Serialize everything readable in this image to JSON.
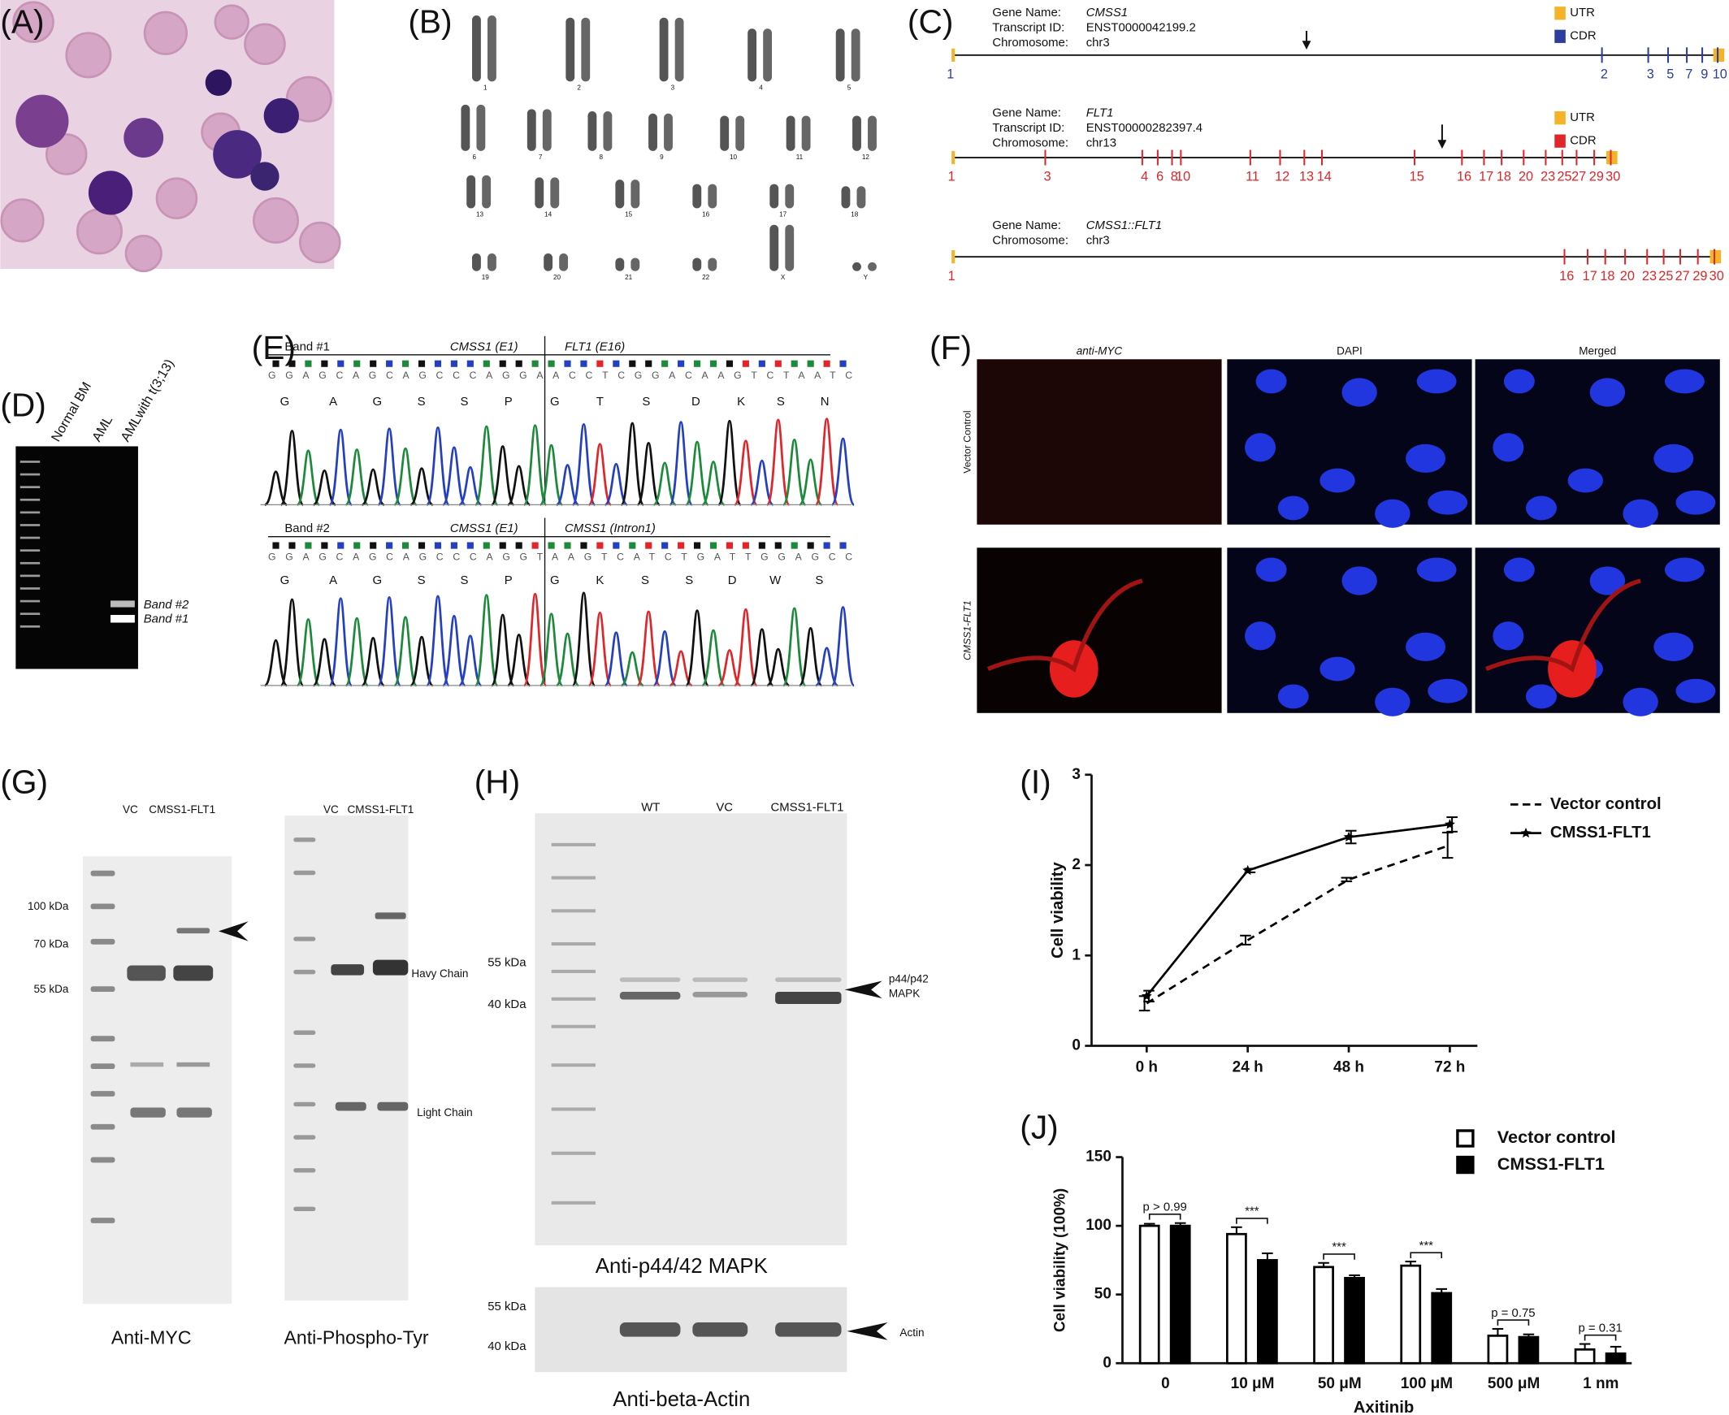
{
  "panels": {
    "labels": [
      "(A)",
      "(B)",
      "(C)",
      "(D)",
      "(E)",
      "(F)",
      "(G)",
      "(H)",
      "(I)",
      "(J)"
    ]
  },
  "panel_b": {
    "chromosomes": [
      "1",
      "2",
      "3",
      "4",
      "5",
      "6",
      "7",
      "8",
      "9",
      "10",
      "11",
      "12",
      "13",
      "14",
      "15",
      "16",
      "17",
      "18",
      "19",
      "20",
      "21",
      "22",
      "X",
      "Y"
    ]
  },
  "panel_c": {
    "tracks": [
      {
        "gene_label": "Gene Name:",
        "gene": "CMSS1",
        "transcript_label": "Transcript ID:",
        "transcript": "ENST0000042199.2",
        "chrom_label": "Chromosome:",
        "chrom": "chr3",
        "legend": [
          "UTR",
          "CDR"
        ],
        "color": "#2b3d9e",
        "utr_color": "#f5b32a",
        "exons": [
          1,
          2,
          3,
          5,
          7,
          9,
          10
        ]
      },
      {
        "gene_label": "Gene Name:",
        "gene": "FLT1",
        "transcript_label": "Transcript ID:",
        "transcript": "ENST00000282397.4",
        "chrom_label": "Chromosome:",
        "chrom": "chr13",
        "legend": [
          "UTR",
          "CDR"
        ],
        "color": "#e0262a",
        "utr_color": "#f5b32a",
        "exons": [
          1,
          3,
          4,
          6,
          8,
          10,
          11,
          12,
          13,
          14,
          15,
          16,
          17,
          18,
          20,
          23,
          25,
          27,
          29,
          30
        ]
      },
      {
        "gene_label": "Gene Name:",
        "gene": "CMSS1::FLT1",
        "chrom_label": "Chromosome:",
        "chrom": "chr3",
        "color": "#e0262a",
        "utr_color": "#f5b32a",
        "exons": [
          1,
          16,
          17,
          18,
          20,
          23,
          25,
          27,
          29,
          30
        ]
      }
    ]
  },
  "panel_d": {
    "lanes": [
      "Normal BM",
      "AML",
      "AMLwith t(3;13)"
    ],
    "bands": [
      "Band #2",
      "Band #1"
    ]
  },
  "panel_e": {
    "reads": [
      {
        "band": "Band #1",
        "left": "CMSS1 (E1)",
        "right": "FLT1 (E16)",
        "bases": "GGAGCAGCAGCCCAGGAACCTCGGACAAGTCTAATC",
        "amino_acids": [
          "G",
          "A",
          "G",
          "S",
          "S",
          "P",
          "G",
          "T",
          "S",
          "D",
          "K",
          "S",
          "N"
        ]
      },
      {
        "band": "Band #2",
        "left": "CMSS1 (E1)",
        "right": "CMSS1 (Intron1)",
        "bases": "GGAGCAGCAGCCCAGGTAAGTCATCTGATTGGAGCC",
        "amino_acids": [
          "G",
          "A",
          "G",
          "S",
          "S",
          "P",
          "G",
          "K",
          "S",
          "S",
          "D",
          "W",
          "S"
        ]
      }
    ]
  },
  "panel_f": {
    "columns": [
      "anti-MYC",
      "DAPI",
      "Merged"
    ],
    "rows": [
      "Vector Control",
      "CMSS1-FLT1"
    ]
  },
  "panel_g": {
    "blots": [
      {
        "lanes": [
          "VC",
          "CMSS1-FLT1"
        ],
        "markers": [
          "100 kDa",
          "70 kDa",
          "55 kDa"
        ],
        "title": "Anti-MYC"
      },
      {
        "lanes": [
          "VC",
          "CMSS1-FLT1"
        ],
        "bands": [
          "Havy Chain",
          "Light Chain"
        ],
        "title": "Anti-Phospho-Tyr"
      }
    ]
  },
  "panel_h": {
    "lanes": [
      "WT",
      "VC",
      "CMSS1-FLT1"
    ],
    "blots": [
      {
        "markers": [
          "55 kDa",
          "40 kDa"
        ],
        "band": [
          "p44/p42",
          "MAPK"
        ],
        "title": "Anti-p44/42 MAPK"
      },
      {
        "markers": [
          "55 kDa",
          "40 kDa"
        ],
        "band": [
          "Actin"
        ],
        "title": "Anti-beta-Actin"
      }
    ]
  },
  "chart_data": [
    {
      "type": "line",
      "ylabel": "Cell viability",
      "categories": [
        "0 h",
        "24 h",
        "48 h",
        "72 h"
      ],
      "ylim": [
        0,
        3
      ],
      "yticks": [
        0,
        1,
        2,
        3
      ],
      "series": [
        {
          "name": "Vector control",
          "color": "#000000",
          "line_style": "dashed",
          "values": [
            0.47,
            1.17,
            1.84,
            2.22
          ],
          "errors": [
            0.08,
            0.05,
            0.02,
            0.14
          ]
        },
        {
          "name": "CMSS1-FLT1",
          "color": "#000000",
          "line_style": "solid",
          "marker": "star",
          "values": [
            0.55,
            1.94,
            2.31,
            2.45
          ],
          "errors": [
            0.06,
            0.02,
            0.07,
            0.08
          ]
        }
      ]
    },
    {
      "type": "bar",
      "ylabel": "Cell viability (100%)",
      "xlabel": "Axitinib",
      "categories": [
        "0",
        "10 μM",
        "50 μM",
        "100 μM",
        "500 μM",
        "1 nm"
      ],
      "ylim": [
        0,
        150
      ],
      "yticks": [
        0,
        50,
        100,
        150
      ],
      "edgecolor": "#000000",
      "series": [
        {
          "name": "Vector control",
          "color": "#ffffff",
          "values": [
            100,
            94,
            70,
            71,
            20,
            10
          ],
          "errors": [
            1.5,
            5,
            3,
            3,
            5,
            4
          ]
        },
        {
          "name": "CMSS1-FLT1",
          "color": "#000000",
          "values": [
            100,
            75,
            62,
            51,
            19,
            7
          ],
          "errors": [
            2,
            5,
            2,
            3,
            2,
            5
          ]
        }
      ],
      "annotations": [
        "p > 0.99",
        "***",
        "***",
        "***",
        "p = 0.75",
        "p = 0.31"
      ]
    }
  ]
}
